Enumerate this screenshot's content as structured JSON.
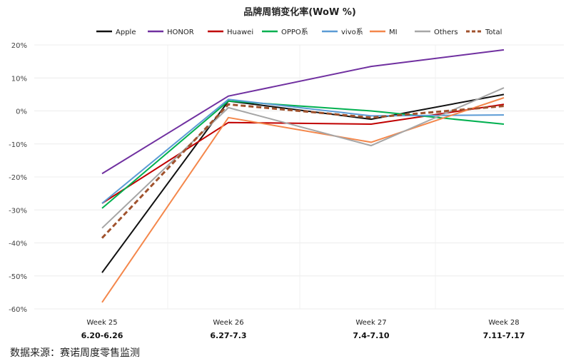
{
  "chart_data": {
    "type": "line",
    "title": "品牌周销变化率(WoW %)",
    "xlabel": "",
    "ylabel": "",
    "ylim": [
      -60,
      20
    ],
    "yticks": [
      "20%",
      "10%",
      "0%",
      "-10%",
      "-20%",
      "-30%",
      "-40%",
      "-50%",
      "-60%"
    ],
    "ytick_values": [
      20,
      10,
      0,
      -10,
      -20,
      -30,
      -40,
      -50,
      -60
    ],
    "categories": [
      "Week 25",
      "Week 26",
      "Week 27",
      "Week 28"
    ],
    "category_dates": [
      "6.20-6.26",
      "6.27-7.3",
      "7.4-7.10",
      "7.11-7.17"
    ],
    "legend_position": "top",
    "grid": "horizontal and vertical",
    "series": [
      {
        "name": "Apple",
        "color": "#111111",
        "dashed": false,
        "values": [
          -49,
          3,
          -2.5,
          5
        ]
      },
      {
        "name": "HONOR",
        "color": "#7030a0",
        "dashed": false,
        "values": [
          -19,
          4.5,
          13.5,
          18.5
        ]
      },
      {
        "name": "Huawei",
        "color": "#c00000",
        "dashed": false,
        "values": [
          -28,
          -3.5,
          -4,
          2
        ]
      },
      {
        "name": "OPPO系",
        "color": "#00b050",
        "dashed": false,
        "values": [
          -29.5,
          3,
          0,
          -4
        ]
      },
      {
        "name": "vivo系",
        "color": "#5b9bd5",
        "dashed": false,
        "values": [
          -28,
          3.5,
          -1.5,
          -1.2
        ]
      },
      {
        "name": "MI",
        "color": "#f4874b",
        "dashed": false,
        "values": [
          -58,
          -2,
          -9.5,
          4
        ]
      },
      {
        "name": "Others",
        "color": "#a6a6a6",
        "dashed": false,
        "values": [
          -35.5,
          1,
          -10.5,
          7
        ]
      },
      {
        "name": "Total",
        "color": "#a0522d",
        "dashed": true,
        "values": [
          -38.5,
          2,
          -2,
          1.5
        ]
      }
    ]
  },
  "source": "数据来源：赛诺周度零售监测"
}
